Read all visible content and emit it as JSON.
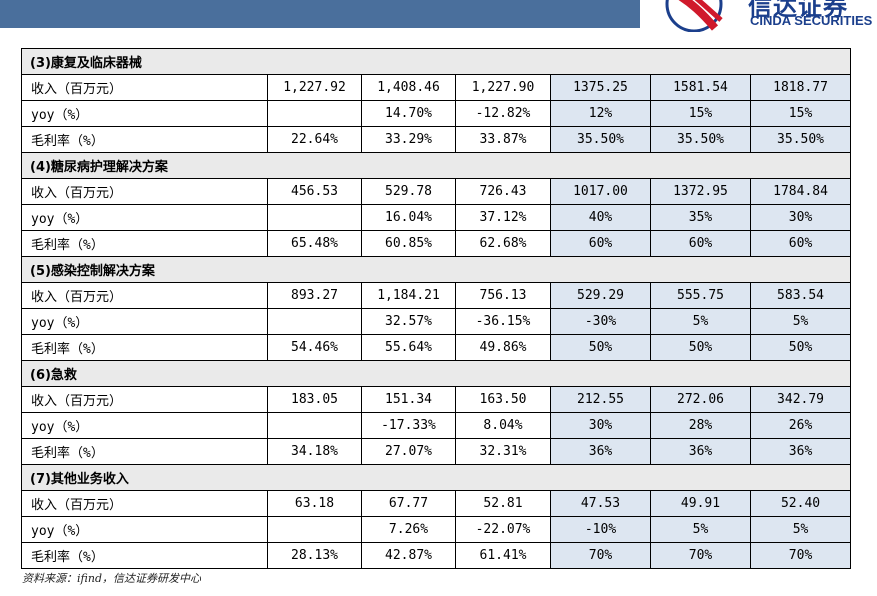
{
  "brand": {
    "name_cn": "信达证券",
    "name_en": "CINDA SECURITIES"
  },
  "sections": [
    {
      "title": "(3)康复及临床器械",
      "rows": [
        {
          "label": "收入（百万元）",
          "values": [
            "1,227.92",
            "1,408.46",
            "1,227.90",
            "1375.25",
            "1581.54",
            "1818.77"
          ]
        },
        {
          "label": "yoy（%）",
          "values": [
            "",
            "14.70%",
            "-12.82%",
            "12%",
            "15%",
            "15%"
          ]
        },
        {
          "label": "毛利率（%）",
          "values": [
            "22.64%",
            "33.29%",
            "33.87%",
            "35.50%",
            "35.50%",
            "35.50%"
          ]
        }
      ]
    },
    {
      "title": "(4)糖尿病护理解决方案",
      "rows": [
        {
          "label": "收入（百万元）",
          "values": [
            "456.53",
            "529.78",
            "726.43",
            "1017.00",
            "1372.95",
            "1784.84"
          ]
        },
        {
          "label": "yoy（%）",
          "values": [
            "",
            "16.04%",
            "37.12%",
            "40%",
            "35%",
            "30%"
          ]
        },
        {
          "label": "毛利率（%）",
          "values": [
            "65.48%",
            "60.85%",
            "62.68%",
            "60%",
            "60%",
            "60%"
          ]
        }
      ]
    },
    {
      "title": "(5)感染控制解决方案",
      "rows": [
        {
          "label": "收入（百万元）",
          "values": [
            "893.27",
            "1,184.21",
            "756.13",
            "529.29",
            "555.75",
            "583.54"
          ]
        },
        {
          "label": "yoy（%）",
          "values": [
            "",
            "32.57%",
            "-36.15%",
            "-30%",
            "5%",
            "5%"
          ]
        },
        {
          "label": "毛利率（%）",
          "values": [
            "54.46%",
            "55.64%",
            "49.86%",
            "50%",
            "50%",
            "50%"
          ]
        }
      ]
    },
    {
      "title": "(6)急救",
      "rows": [
        {
          "label": "收入（百万元）",
          "values": [
            "183.05",
            "151.34",
            "163.50",
            "212.55",
            "272.06",
            "342.79"
          ]
        },
        {
          "label": "yoy（%）",
          "values": [
            "",
            "-17.33%",
            "8.04%",
            "30%",
            "28%",
            "26%"
          ]
        },
        {
          "label": "毛利率（%）",
          "values": [
            "34.18%",
            "27.07%",
            "32.31%",
            "36%",
            "36%",
            "36%"
          ]
        }
      ]
    },
    {
      "title": "(7)其他业务收入",
      "rows": [
        {
          "label": "收入（百万元）",
          "values": [
            "63.18",
            "67.77",
            "52.81",
            "47.53",
            "49.91",
            "52.40"
          ]
        },
        {
          "label": "yoy（%）",
          "values": [
            "",
            "7.26%",
            "-22.07%",
            "-10%",
            "5%",
            "5%"
          ]
        },
        {
          "label": "毛利率（%）",
          "values": [
            "28.13%",
            "42.87%",
            "61.41%",
            "70%",
            "70%",
            "70%"
          ]
        }
      ]
    }
  ],
  "footnote": "资料来源：ifind，信达证券研发中心",
  "colors": {
    "header_bar": "#4a6f9c",
    "estimate_fill": "#dde6f1",
    "section_fill": "#eaeaea",
    "brand_blue": "#1b3f8c",
    "brand_red": "#d0192b"
  }
}
